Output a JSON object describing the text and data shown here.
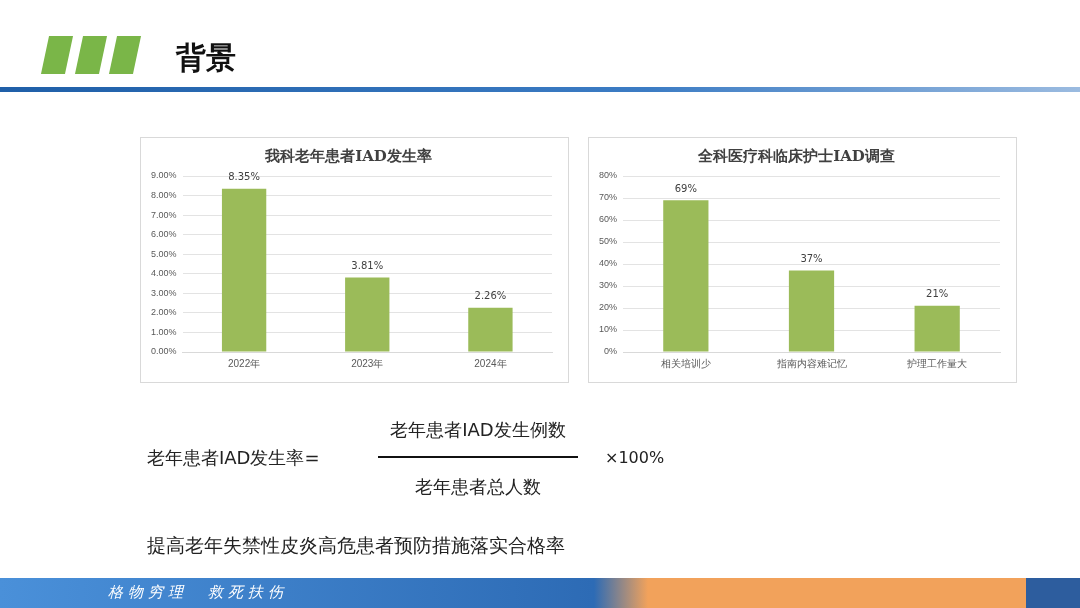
{
  "chart_data": [
    {
      "type": "bar",
      "title": "我科老年患者IAD发生率",
      "categories": [
        "2022年",
        "2023年",
        "2024年"
      ],
      "values": [
        8.35,
        3.81,
        2.26
      ],
      "value_labels": [
        "8.35%",
        "3.81%",
        "2.26%"
      ],
      "color": "#9bbb59",
      "ylim": [
        0,
        9
      ],
      "yticks": [
        {
          "value": 0,
          "label": "0.00%"
        },
        {
          "value": 1,
          "label": "1.00%"
        },
        {
          "value": 2,
          "label": "2.00%"
        },
        {
          "value": 3,
          "label": "3.00%"
        },
        {
          "value": 4,
          "label": "4.00%"
        },
        {
          "value": 5,
          "label": "5.00%"
        },
        {
          "value": 6,
          "label": "6.00%"
        },
        {
          "value": 7,
          "label": "7.00%"
        },
        {
          "value": 8,
          "label": "8.00%"
        },
        {
          "value": 9,
          "label": "9.00%"
        }
      ],
      "grid": "y"
    },
    {
      "type": "bar",
      "title": "全科医疗科临床护士IAD调查",
      "categories": [
        "相关培训少",
        "指南内容难记忆",
        "护理工作量大"
      ],
      "values": [
        69,
        37,
        21
      ],
      "value_labels": [
        "69%",
        "37%",
        "21%"
      ],
      "color": "#9bbb59",
      "ylim": [
        0,
        80
      ],
      "yticks": [
        {
          "value": 0,
          "label": "0%"
        },
        {
          "value": 10,
          "label": "10%"
        },
        {
          "value": 20,
          "label": "20%"
        },
        {
          "value": 30,
          "label": "30%"
        },
        {
          "value": 40,
          "label": "40%"
        },
        {
          "value": 50,
          "label": "50%"
        },
        {
          "value": 60,
          "label": "60%"
        },
        {
          "value": 70,
          "label": "70%"
        },
        {
          "value": 80,
          "label": "80%"
        }
      ],
      "grid": "y"
    },
    {
      "type": "other",
      "title": "背景",
      "annotations": [
        "老年患者IAD发生率=",
        "老年患者IAD发生例数",
        "老年患者总人数",
        "×100%",
        "提高老年失禁性皮炎高危患者预防措施落实合格率",
        "格物穷理　救死扶伤"
      ]
    }
  ]
}
